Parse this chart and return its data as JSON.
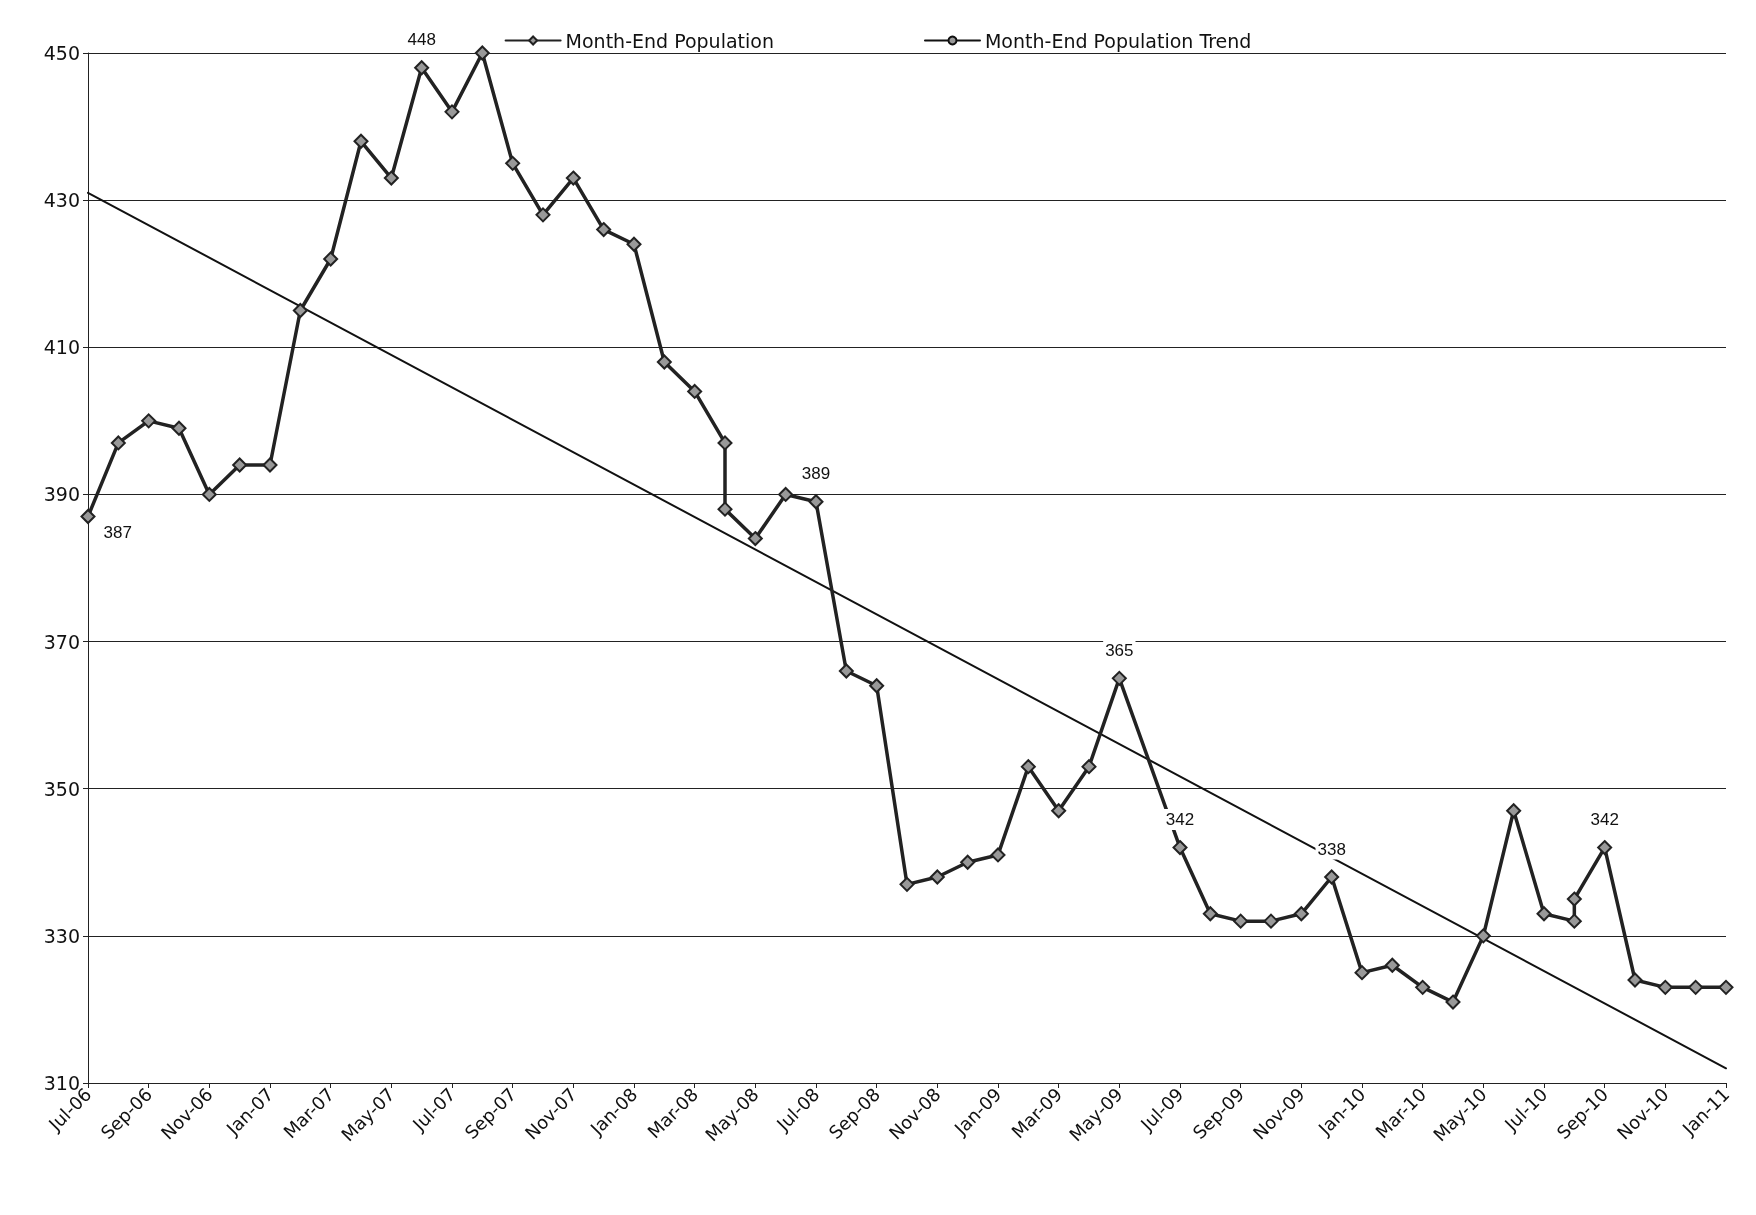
{
  "chart_data": {
    "type": "line",
    "legend": "top",
    "grid": "y",
    "line_style": "solid",
    "xlim": [
      "2006-07",
      "2011-01"
    ],
    "ylim": [
      310,
      450
    ],
    "yticks": [
      310,
      330,
      350,
      370,
      390,
      410,
      430,
      450
    ],
    "xticks": [
      {
        "value": "2006-07",
        "label": "Jul-06"
      },
      {
        "value": "2006-09",
        "label": "Sep-06"
      },
      {
        "value": "2006-11",
        "label": "Nov-06"
      },
      {
        "value": "2007-01",
        "label": "Jan-07"
      },
      {
        "value": "2007-03",
        "label": "Mar-07"
      },
      {
        "value": "2007-05",
        "label": "May-07"
      },
      {
        "value": "2007-07",
        "label": "Jul-07"
      },
      {
        "value": "2007-09",
        "label": "Sep-07"
      },
      {
        "value": "2007-11",
        "label": "Nov-07"
      },
      {
        "value": "2008-01",
        "label": "Jan-08"
      },
      {
        "value": "2008-03",
        "label": "Mar-08"
      },
      {
        "value": "2008-05",
        "label": "May-08"
      },
      {
        "value": "2008-07",
        "label": "Jul-08"
      },
      {
        "value": "2008-09",
        "label": "Sep-08"
      },
      {
        "value": "2008-11",
        "label": "Nov-08"
      },
      {
        "value": "2009-01",
        "label": "Jan-09"
      },
      {
        "value": "2009-03",
        "label": "Mar-09"
      },
      {
        "value": "2009-05",
        "label": "May-09"
      },
      {
        "value": "2009-07",
        "label": "Jul-09"
      },
      {
        "value": "2009-09",
        "label": "Sep-09"
      },
      {
        "value": "2009-11",
        "label": "Nov-09"
      },
      {
        "value": "2010-01",
        "label": "Jan-10"
      },
      {
        "value": "2010-03",
        "label": "Mar-10"
      },
      {
        "value": "2010-05",
        "label": "May-10"
      },
      {
        "value": "2010-07",
        "label": "Jul-10"
      },
      {
        "value": "2010-09",
        "label": "Sep-10"
      },
      {
        "value": "2010-11",
        "label": "Nov-10"
      },
      {
        "value": "2011-01",
        "label": "Jan-11"
      }
    ],
    "series": [
      {
        "name": "Month-End Population",
        "color": "#222222",
        "marker": "diamond",
        "x": [
          "2006-07",
          "2006-08",
          "2006-09",
          "2006-10",
          "2006-11",
          "2006-12",
          "2007-01",
          "2007-02",
          "2007-03",
          "2007-04",
          "2007-05",
          "2007-06",
          "2007-07",
          "2007-08",
          "2007-09",
          "2007-10",
          "2007-11",
          "2007-12",
          "2008-01",
          "2008-02",
          "2008-03",
          "2008-04",
          "2008-04",
          "2008-05",
          "2008-06",
          "2008-07",
          "2008-08",
          "2008-09",
          "2008-10",
          "2008-11",
          "2008-12",
          "2009-01",
          "2009-02",
          "2009-03",
          "2009-04",
          "2009-05",
          "2009-07",
          "2009-08",
          "2009-09",
          "2009-10",
          "2009-11",
          "2009-12",
          "2010-01",
          "2010-02",
          "2010-03",
          "2010-04",
          "2010-05",
          "2010-06",
          "2010-07",
          "2010-08",
          "2010-08",
          "2010-09",
          "2010-10",
          "2010-11",
          "2010-12",
          "2011-01"
        ],
        "values": [
          387,
          397,
          400,
          399,
          390,
          394,
          394,
          415,
          422,
          438,
          433,
          448,
          442,
          450,
          435,
          428,
          433,
          426,
          424,
          408,
          404,
          397,
          388,
          384,
          390,
          389,
          366,
          364,
          337,
          338,
          340,
          341,
          353,
          347,
          353,
          365,
          342,
          333,
          332,
          332,
          333,
          338,
          325,
          326,
          323,
          321,
          330,
          347,
          333,
          332,
          335,
          342,
          324,
          323,
          323,
          323
        ],
        "value_labels": [
          "387",
          null,
          null,
          null,
          null,
          null,
          null,
          null,
          null,
          null,
          null,
          "448",
          null,
          null,
          null,
          null,
          null,
          null,
          null,
          null,
          null,
          null,
          null,
          null,
          null,
          "389",
          null,
          null,
          null,
          null,
          null,
          null,
          null,
          null,
          null,
          "365",
          "342",
          null,
          null,
          null,
          null,
          "338",
          null,
          null,
          null,
          null,
          null,
          null,
          null,
          null,
          null,
          "342",
          null,
          null,
          null,
          null
        ]
      },
      {
        "name": "Month-End Population Trend",
        "color": "#111111",
        "marker": "none",
        "x": [
          "2006-07",
          "2011-01"
        ],
        "values": [
          431,
          312
        ]
      }
    ]
  }
}
